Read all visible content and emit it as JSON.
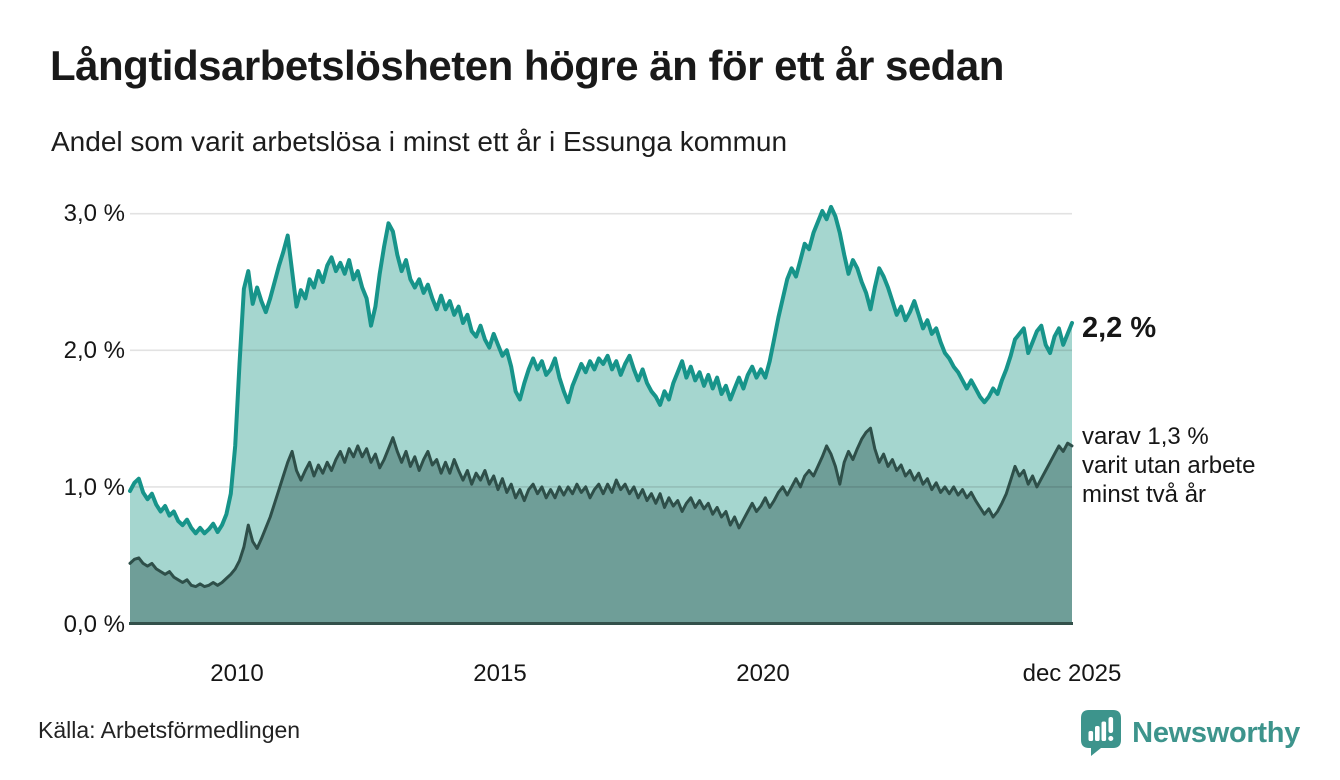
{
  "header": {
    "title": "Långtidsarbetslösheten högre än för ett år sedan",
    "subtitle": "Andel som varit arbetslösa i minst ett år i Essunga kommun"
  },
  "annotations": {
    "latest_value_label": "2,2 %",
    "secondary_note_line1": "varav 1,3 %",
    "secondary_note_line2": "varit utan arbete",
    "secondary_note_line3": "minst två år"
  },
  "footer": {
    "source": "Källa: Arbetsförmedlingen",
    "brand_name": "Newsworthy"
  },
  "colors": {
    "series_one_stroke": "#17948a",
    "series_one_fill": "#a5d6cf",
    "series_two_stroke": "#2e4f49",
    "series_two_fill": "#6f9e98",
    "baseline": "#33504a",
    "gridline": "rgba(17,17,17,0.12)",
    "brand_teal": "#3d948c",
    "text": "#161616"
  },
  "chart_data": {
    "type": "area",
    "title": "Långtidsarbetslösheten högre än för ett år sedan",
    "subtitle": "Andel som varit arbetslösa i minst ett år i Essunga kommun",
    "unit": "%",
    "x_start": "jan 2008",
    "x_end": "dec 2025",
    "x_points_per_year": 12,
    "x_tick_labels": [
      "2010",
      "2015",
      "2020",
      "dec 2025"
    ],
    "y_tick_labels": [
      "0,0 %",
      "1,0 %",
      "2,0 %",
      "3,0 %"
    ],
    "ylim": [
      0,
      3.0
    ],
    "grid": "horizontal",
    "legend_position": "right-annotations",
    "series": [
      {
        "name": "Andel arbetslösa minst ett år",
        "latest_value": 2.2,
        "values": [
          0.97,
          1.03,
          1.06,
          0.96,
          0.91,
          0.95,
          0.87,
          0.82,
          0.86,
          0.79,
          0.82,
          0.75,
          0.72,
          0.76,
          0.7,
          0.66,
          0.7,
          0.66,
          0.69,
          0.73,
          0.67,
          0.72,
          0.8,
          0.95,
          1.3,
          1.9,
          2.45,
          2.58,
          2.34,
          2.46,
          2.36,
          2.28,
          2.38,
          2.5,
          2.62,
          2.72,
          2.84,
          2.58,
          2.32,
          2.44,
          2.38,
          2.52,
          2.46,
          2.58,
          2.5,
          2.62,
          2.68,
          2.58,
          2.64,
          2.56,
          2.66,
          2.52,
          2.58,
          2.46,
          2.38,
          2.18,
          2.32,
          2.56,
          2.76,
          2.93,
          2.87,
          2.7,
          2.58,
          2.66,
          2.52,
          2.46,
          2.52,
          2.42,
          2.48,
          2.38,
          2.3,
          2.4,
          2.3,
          2.36,
          2.26,
          2.32,
          2.2,
          2.26,
          2.14,
          2.1,
          2.18,
          2.08,
          2.02,
          2.12,
          2.04,
          1.96,
          2.0,
          1.88,
          1.7,
          1.64,
          1.76,
          1.86,
          1.94,
          1.86,
          1.92,
          1.82,
          1.86,
          1.94,
          1.8,
          1.7,
          1.62,
          1.74,
          1.82,
          1.9,
          1.84,
          1.92,
          1.86,
          1.94,
          1.9,
          1.96,
          1.86,
          1.92,
          1.82,
          1.9,
          1.96,
          1.86,
          1.78,
          1.86,
          1.76,
          1.7,
          1.66,
          1.6,
          1.7,
          1.64,
          1.76,
          1.84,
          1.92,
          1.8,
          1.88,
          1.78,
          1.84,
          1.74,
          1.82,
          1.72,
          1.8,
          1.68,
          1.74,
          1.64,
          1.72,
          1.8,
          1.72,
          1.82,
          1.88,
          1.8,
          1.86,
          1.8,
          1.92,
          2.08,
          2.24,
          2.38,
          2.52,
          2.6,
          2.54,
          2.66,
          2.78,
          2.74,
          2.86,
          2.94,
          3.02,
          2.96,
          3.05,
          2.98,
          2.86,
          2.7,
          2.56,
          2.66,
          2.6,
          2.5,
          2.42,
          2.3,
          2.46,
          2.6,
          2.54,
          2.46,
          2.36,
          2.26,
          2.32,
          2.22,
          2.28,
          2.36,
          2.26,
          2.16,
          2.22,
          2.12,
          2.16,
          2.06,
          1.98,
          1.94,
          1.88,
          1.84,
          1.78,
          1.72,
          1.78,
          1.72,
          1.66,
          1.62,
          1.66,
          1.72,
          1.68,
          1.78,
          1.86,
          1.96,
          2.08,
          2.12,
          2.16,
          1.98,
          2.06,
          2.14,
          2.18,
          2.04,
          1.98,
          2.1,
          2.16,
          2.04,
          2.12,
          2.2
        ]
      },
      {
        "name": "varav utan arbete minst två år",
        "latest_value": 1.3,
        "values": [
          0.44,
          0.47,
          0.48,
          0.44,
          0.42,
          0.44,
          0.4,
          0.38,
          0.36,
          0.38,
          0.34,
          0.32,
          0.3,
          0.32,
          0.28,
          0.27,
          0.29,
          0.27,
          0.28,
          0.3,
          0.28,
          0.3,
          0.33,
          0.36,
          0.4,
          0.46,
          0.56,
          0.72,
          0.6,
          0.55,
          0.62,
          0.7,
          0.78,
          0.88,
          0.98,
          1.08,
          1.18,
          1.26,
          1.12,
          1.05,
          1.12,
          1.18,
          1.08,
          1.16,
          1.1,
          1.18,
          1.12,
          1.2,
          1.26,
          1.18,
          1.28,
          1.22,
          1.3,
          1.22,
          1.28,
          1.18,
          1.24,
          1.14,
          1.2,
          1.28,
          1.36,
          1.26,
          1.18,
          1.26,
          1.15,
          1.22,
          1.12,
          1.2,
          1.26,
          1.16,
          1.2,
          1.1,
          1.18,
          1.1,
          1.2,
          1.12,
          1.05,
          1.12,
          1.02,
          1.1,
          1.05,
          1.12,
          1.02,
          1.08,
          0.98,
          1.06,
          0.96,
          1.02,
          0.92,
          0.98,
          0.9,
          0.98,
          1.02,
          0.95,
          1.0,
          0.92,
          0.98,
          0.92,
          1.0,
          0.94,
          1.0,
          0.95,
          1.02,
          0.96,
          1.0,
          0.92,
          0.98,
          1.02,
          0.95,
          1.02,
          0.96,
          1.05,
          0.98,
          1.02,
          0.95,
          1.0,
          0.92,
          0.98,
          0.9,
          0.95,
          0.88,
          0.95,
          0.85,
          0.92,
          0.86,
          0.9,
          0.82,
          0.88,
          0.92,
          0.85,
          0.9,
          0.84,
          0.88,
          0.8,
          0.85,
          0.78,
          0.82,
          0.72,
          0.78,
          0.7,
          0.76,
          0.82,
          0.88,
          0.82,
          0.86,
          0.92,
          0.85,
          0.9,
          0.96,
          1.0,
          0.94,
          1.0,
          1.06,
          1.0,
          1.08,
          1.12,
          1.08,
          1.15,
          1.22,
          1.3,
          1.24,
          1.15,
          1.02,
          1.18,
          1.26,
          1.2,
          1.28,
          1.35,
          1.4,
          1.43,
          1.28,
          1.18,
          1.24,
          1.15,
          1.2,
          1.12,
          1.16,
          1.08,
          1.12,
          1.05,
          1.1,
          1.02,
          1.06,
          0.98,
          1.03,
          0.96,
          1.0,
          0.95,
          1.0,
          0.94,
          0.98,
          0.92,
          0.96,
          0.9,
          0.85,
          0.8,
          0.84,
          0.78,
          0.82,
          0.88,
          0.95,
          1.05,
          1.15,
          1.08,
          1.12,
          1.02,
          1.08,
          1.0,
          1.06,
          1.12,
          1.18,
          1.24,
          1.3,
          1.26,
          1.32,
          1.3
        ]
      }
    ]
  }
}
